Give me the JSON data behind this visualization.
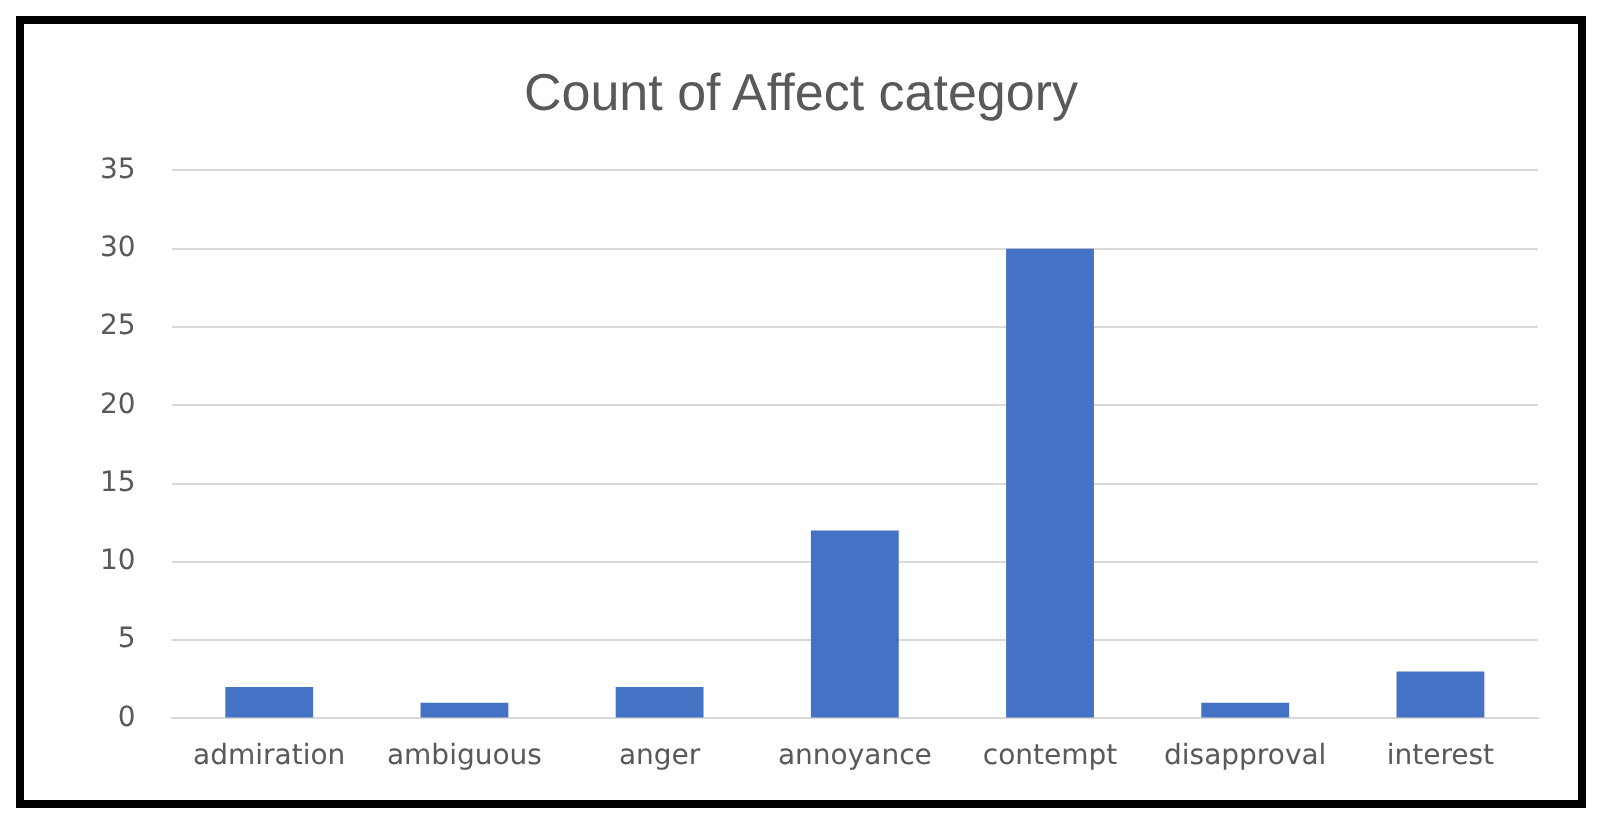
{
  "chart_data": {
    "type": "bar",
    "title": "Count of Affect category",
    "categories": [
      "admiration",
      "ambiguous",
      "anger",
      "annoyance",
      "contempt",
      "disapproval",
      "interest"
    ],
    "values": [
      2,
      1,
      2,
      12,
      30,
      1,
      3
    ],
    "color": "#4472c4",
    "ylim": [
      0,
      35
    ],
    "yticks": [
      0,
      5,
      10,
      15,
      20,
      25,
      30,
      35
    ],
    "grid": "y"
  }
}
